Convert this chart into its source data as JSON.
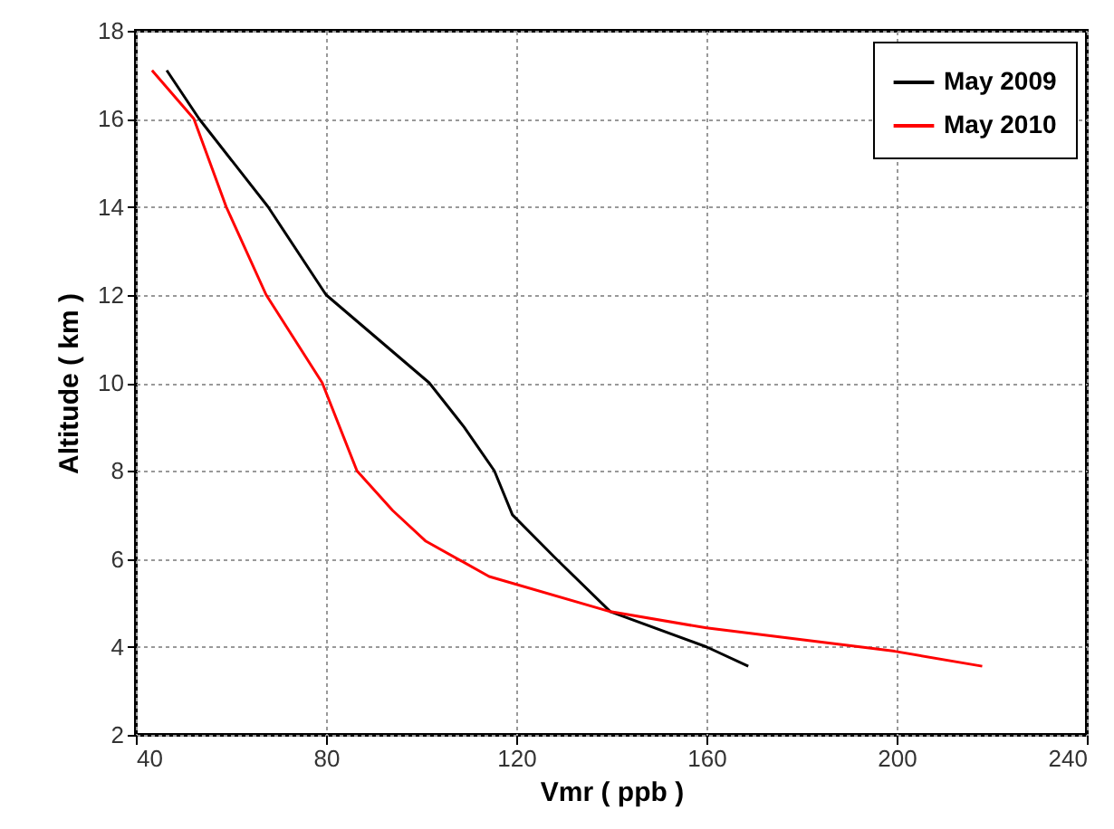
{
  "chart_data": {
    "type": "line",
    "xlabel": "Vmr ( ppb )",
    "ylabel": "Altitude ( km )",
    "xlim": [
      40,
      240
    ],
    "xticks": [
      40,
      80,
      120,
      160,
      200,
      240
    ],
    "ylim": [
      2,
      18
    ],
    "yticks": [
      2,
      4,
      6,
      8,
      10,
      12,
      14,
      16,
      18
    ],
    "grid": true,
    "legend": "top right",
    "line_style": "solid",
    "series": [
      {
        "name": "May 2009",
        "color": "#000000",
        "x": [
          46.5,
          53.3,
          67.8,
          80,
          101.7,
          109,
          115.4,
          119.2,
          128.4,
          139.8,
          160,
          168.8
        ],
        "values": [
          17.1,
          16,
          14,
          12,
          10,
          9,
          8,
          7,
          6,
          4.8,
          4,
          3.56
        ]
      },
      {
        "name": "May 2010",
        "color": "#ff0000",
        "x": [
          43.4,
          52.2,
          59,
          67.4,
          79.2,
          86.5,
          94,
          101,
          114.3,
          139.8,
          160,
          199.6,
          218
        ],
        "values": [
          17.1,
          16,
          14,
          12,
          10,
          8,
          7.1,
          6.4,
          5.6,
          4.8,
          4.43,
          3.9,
          3.56
        ]
      }
    ]
  }
}
